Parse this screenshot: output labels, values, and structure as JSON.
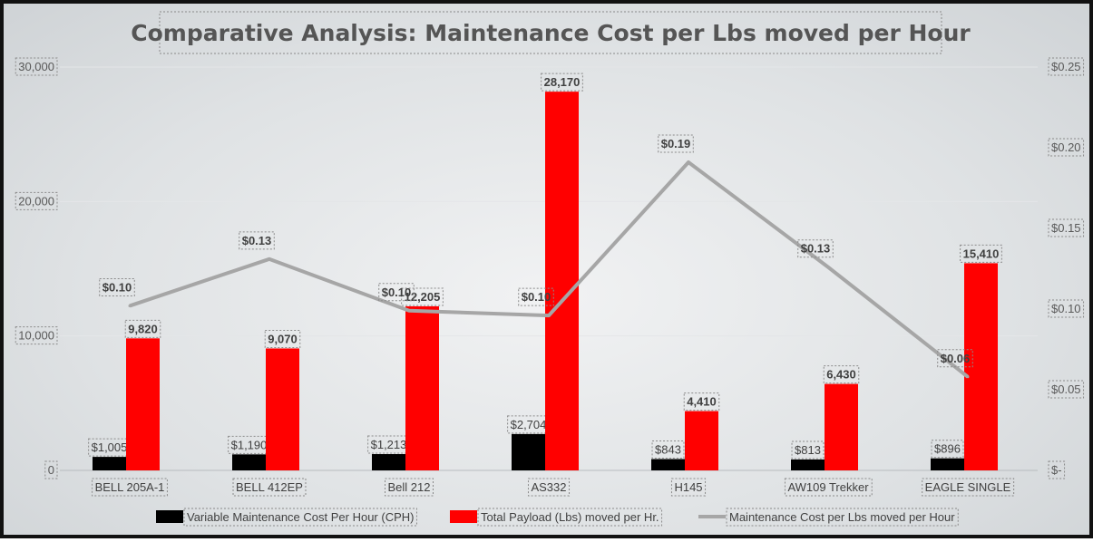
{
  "chart_data": {
    "type": "bar",
    "title": "Comparative Analysis: Maintenance Cost per Lbs moved per Hour",
    "categories": [
      "BELL 205A-1",
      "BELL 412EP",
      "Bell 212",
      "AS332",
      "H145",
      "AW109 Trekker",
      "EAGLE SINGLE"
    ],
    "series": [
      {
        "name": "Variable Maintenance Cost Per Hour (CPH)",
        "type": "bar",
        "axis": "primary",
        "color": "#000000",
        "values": [
          1005,
          1190,
          1213,
          2704,
          843,
          813,
          896
        ],
        "labels": [
          "$1,005",
          "$1,190",
          "$1,213",
          "$2,704",
          "$843",
          "$813",
          "$896"
        ]
      },
      {
        "name": "Total Payload (Lbs) moved per Hr.",
        "type": "bar",
        "axis": "primary",
        "color": "#ff0000",
        "values": [
          9820,
          9070,
          12205,
          28170,
          4410,
          6430,
          15410
        ],
        "labels": [
          "9,820",
          "9,070",
          "12,205",
          "28,170",
          "4,410",
          "6,430",
          "15,410"
        ]
      },
      {
        "name": "Maintenance Cost per Lbs moved per Hour",
        "type": "line",
        "axis": "secondary",
        "color": "#a6a6a6",
        "values": [
          0.102,
          0.131,
          0.099,
          0.096,
          0.191,
          0.126,
          0.058
        ],
        "labels": [
          "$0.10",
          "$0.13",
          "$0.10",
          "$0.10",
          "$0.19",
          "$0.13",
          "$0.06"
        ]
      }
    ],
    "y_axis": {
      "ylim": [
        0,
        30000
      ],
      "ticks": [
        0,
        10000,
        20000,
        30000
      ],
      "tick_labels": [
        "0",
        "10,000",
        "20,000",
        "30,000"
      ]
    },
    "y2_axis": {
      "ylim": [
        0,
        0.25
      ],
      "ticks": [
        0,
        0.05,
        0.1,
        0.15,
        0.2,
        0.25
      ],
      "tick_labels": [
        "$-",
        "$0.05",
        "$0.10",
        "$0.15",
        "$0.20",
        "$0.25"
      ]
    },
    "grid": true,
    "legend_position": "bottom"
  }
}
